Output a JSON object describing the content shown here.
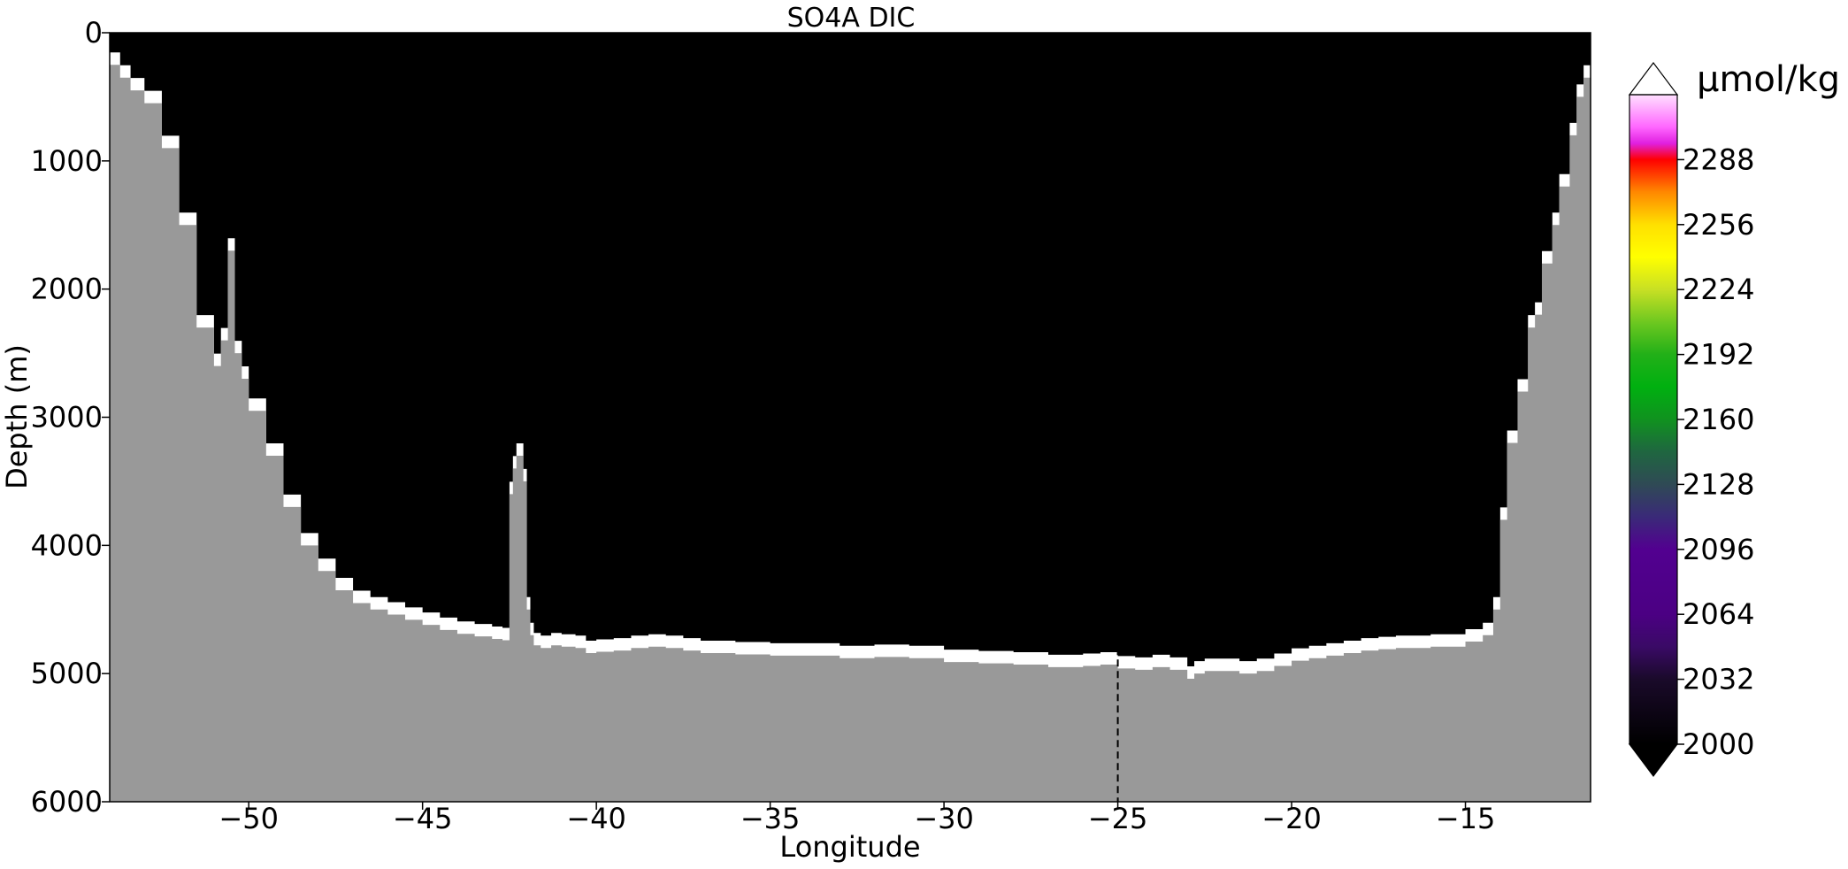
{
  "chart_data": {
    "type": "heatmap",
    "title": "SO4A DIC",
    "xlabel": "Longitude",
    "ylabel": "Depth (m)",
    "xlim": [
      -54.0,
      -11.4
    ],
    "ylim": [
      6000,
      0
    ],
    "x_ticks": [
      -50,
      -45,
      -40,
      -35,
      -30,
      -25,
      -20,
      -15
    ],
    "x_tick_labels": [
      "−50",
      "−45",
      "−40",
      "−35",
      "−30",
      "−25",
      "−20",
      "−15"
    ],
    "y_ticks": [
      0,
      1000,
      2000,
      3000,
      4000,
      5000,
      6000
    ],
    "y_tick_labels": [
      "0",
      "1000",
      "2000",
      "3000",
      "4000",
      "5000",
      "6000"
    ],
    "grid": false,
    "field_value": "≤ 2000 (black throughout water column)",
    "reference_line": {
      "x": -25,
      "y_top": 4800,
      "y_bottom": 6000,
      "style": "dashed"
    },
    "bathymetry": {
      "color": "#999999",
      "lon": [
        -54.0,
        -53.7,
        -53.4,
        -53.0,
        -52.5,
        -52.0,
        -51.5,
        -51.0,
        -50.8,
        -50.6,
        -50.5,
        -50.4,
        -50.2,
        -50.0,
        -49.5,
        -49.0,
        -48.5,
        -48.0,
        -47.5,
        -47.0,
        -46.5,
        -46.0,
        -45.5,
        -45.0,
        -44.5,
        -44.0,
        -43.5,
        -43.0,
        -42.7,
        -42.5,
        -42.4,
        -42.3,
        -42.2,
        -42.1,
        -42.0,
        -41.9,
        -41.8,
        -41.6,
        -41.3,
        -41.0,
        -40.6,
        -40.3,
        -40.0,
        -39.5,
        -39.0,
        -38.5,
        -38.0,
        -37.5,
        -37.0,
        -36.0,
        -35.0,
        -34.0,
        -33.0,
        -32.0,
        -31.0,
        -30.0,
        -29.0,
        -28.0,
        -27.0,
        -26.0,
        -25.5,
        -25.0,
        -24.5,
        -24.0,
        -23.5,
        -23.0,
        -22.8,
        -22.5,
        -22.0,
        -21.5,
        -21.0,
        -20.5,
        -20.0,
        -19.5,
        -19.0,
        -18.5,
        -18.0,
        -17.5,
        -17.0,
        -16.5,
        -16.0,
        -15.5,
        -15.0,
        -14.5,
        -14.2,
        -14.0,
        -13.8,
        -13.5,
        -13.2,
        -13.0,
        -12.8,
        -12.5,
        -12.3,
        -12.0,
        -11.8,
        -11.6,
        -11.4
      ],
      "depth": [
        250,
        350,
        450,
        550,
        900,
        1500,
        2300,
        2600,
        2400,
        1700,
        1700,
        2500,
        2700,
        2950,
        3300,
        3700,
        4000,
        4200,
        4350,
        4450,
        4500,
        4540,
        4580,
        4620,
        4660,
        4690,
        4710,
        4730,
        4740,
        3600,
        3400,
        3300,
        3300,
        3500,
        4500,
        4700,
        4780,
        4800,
        4780,
        4790,
        4800,
        4840,
        4830,
        4820,
        4800,
        4790,
        4800,
        4820,
        4840,
        4850,
        4860,
        4860,
        4880,
        4870,
        4880,
        4910,
        4920,
        4930,
        4950,
        4940,
        4930,
        4960,
        4970,
        4950,
        4970,
        5040,
        5000,
        4980,
        4980,
        5000,
        4980,
        4940,
        4900,
        4880,
        4860,
        4840,
        4820,
        4810,
        4800,
        4800,
        4790,
        4790,
        4750,
        4700,
        4500,
        3800,
        3200,
        2800,
        2300,
        2200,
        1800,
        1500,
        1200,
        800,
        500,
        350,
        300
      ]
    },
    "colorbar": {
      "label": "μmol/kg",
      "min": 2000,
      "max": 2320,
      "tick_values": [
        2000,
        2032,
        2064,
        2096,
        2128,
        2160,
        2192,
        2224,
        2256,
        2288
      ],
      "tick_labels": [
        "2000",
        "2032",
        "2064",
        "2096",
        "2128",
        "2160",
        "2192",
        "2224",
        "2256",
        "2288"
      ],
      "extend": "both",
      "under_color": "#000000",
      "over_color": "#ffffff",
      "color_stops": [
        {
          "value": 2000,
          "color": "#000000"
        },
        {
          "value": 2032,
          "color": "#1a0a2a"
        },
        {
          "value": 2048,
          "color": "#3a0a66"
        },
        {
          "value": 2064,
          "color": "#4b0083"
        },
        {
          "value": 2096,
          "color": "#520090"
        },
        {
          "value": 2112,
          "color": "#3a2a78"
        },
        {
          "value": 2128,
          "color": "#2f4a55"
        },
        {
          "value": 2144,
          "color": "#1f6640"
        },
        {
          "value": 2160,
          "color": "#10921f"
        },
        {
          "value": 2176,
          "color": "#00b010"
        },
        {
          "value": 2192,
          "color": "#22b018"
        },
        {
          "value": 2208,
          "color": "#6ec820"
        },
        {
          "value": 2224,
          "color": "#c8e024"
        },
        {
          "value": 2240,
          "color": "#ffff00"
        },
        {
          "value": 2256,
          "color": "#ffe000"
        },
        {
          "value": 2272,
          "color": "#ff8800"
        },
        {
          "value": 2288,
          "color": "#ff0000"
        },
        {
          "value": 2296,
          "color": "#e020e0"
        },
        {
          "value": 2304,
          "color": "#ff66ff"
        },
        {
          "value": 2320,
          "color": "#ffe0ff"
        }
      ]
    }
  }
}
